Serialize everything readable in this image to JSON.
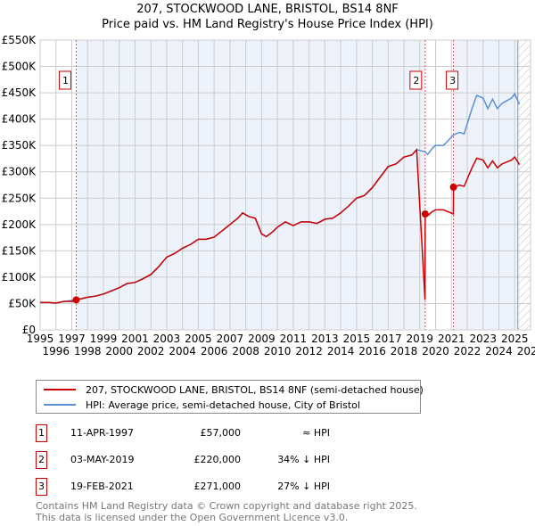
{
  "chart_data": {
    "type": "line",
    "title": "207, STOCKWOOD LANE, BRISTOL, BS14 8NF",
    "subtitle": "Price paid vs. HM Land Registry's House Price Index (HPI)",
    "xlim": [
      1995,
      2026
    ],
    "ylim": [
      0,
      550000
    ],
    "x_ticks": [
      "1995",
      "1996",
      "1997",
      "1998",
      "1999",
      "2000",
      "2001",
      "2002",
      "2003",
      "2004",
      "2005",
      "2006",
      "2007",
      "2008",
      "2009",
      "2010",
      "2011",
      "2012",
      "2013",
      "2014",
      "2015",
      "2016",
      "2017",
      "2018",
      "2019",
      "2020",
      "2021",
      "2022",
      "2023",
      "2024",
      "2025",
      "2026"
    ],
    "y_ticks": [
      "£0",
      "£50K",
      "£100K",
      "£150K",
      "£200K",
      "£250K",
      "£300K",
      "£350K",
      "£400K",
      "£450K",
      "£500K",
      "£550K"
    ],
    "grid": true,
    "hpi_series": [
      [
        1995,
        52
      ],
      [
        1995.5,
        52
      ],
      [
        1996,
        51
      ],
      [
        1996.5,
        54
      ],
      [
        1997.28,
        57
      ],
      [
        1997.6,
        59
      ],
      [
        1998,
        62
      ],
      [
        1998.5,
        64
      ],
      [
        1999,
        68
      ],
      [
        1999.5,
        74
      ],
      [
        2000,
        80
      ],
      [
        2000.5,
        88
      ],
      [
        2001,
        90
      ],
      [
        2001.5,
        97
      ],
      [
        2002,
        105
      ],
      [
        2002.5,
        120
      ],
      [
        2003,
        138
      ],
      [
        2003.5,
        145
      ],
      [
        2004,
        155
      ],
      [
        2004.5,
        162
      ],
      [
        2005,
        172
      ],
      [
        2005.5,
        172
      ],
      [
        2006,
        176
      ],
      [
        2006.5,
        188
      ],
      [
        2007,
        200
      ],
      [
        2007.5,
        212
      ],
      [
        2007.8,
        222
      ],
      [
        2008.2,
        215
      ],
      [
        2008.6,
        212
      ],
      [
        2009,
        182
      ],
      [
        2009.3,
        177
      ],
      [
        2009.7,
        186
      ],
      [
        2010,
        195
      ],
      [
        2010.5,
        205
      ],
      [
        2011,
        198
      ],
      [
        2011.5,
        205
      ],
      [
        2012,
        205
      ],
      [
        2012.5,
        202
      ],
      [
        2013,
        210
      ],
      [
        2013.5,
        212
      ],
      [
        2014,
        222
      ],
      [
        2014.5,
        235
      ],
      [
        2015,
        250
      ],
      [
        2015.5,
        255
      ],
      [
        2016,
        270
      ],
      [
        2016.5,
        290
      ],
      [
        2017,
        310
      ],
      [
        2017.5,
        315
      ],
      [
        2018,
        328
      ],
      [
        2018.5,
        332
      ],
      [
        2018.8,
        342
      ],
      [
        2019.34,
        338
      ],
      [
        2019.5,
        333
      ],
      [
        2019.8,
        345
      ],
      [
        2020,
        350
      ],
      [
        2020.5,
        350
      ],
      [
        2021.13,
        370
      ],
      [
        2021.5,
        375
      ],
      [
        2021.8,
        372
      ],
      [
        2022.3,
        420
      ],
      [
        2022.6,
        445
      ],
      [
        2023,
        440
      ],
      [
        2023.3,
        420
      ],
      [
        2023.6,
        438
      ],
      [
        2023.9,
        420
      ],
      [
        2024.2,
        430
      ],
      [
        2024.5,
        435
      ],
      [
        2024.8,
        440
      ],
      [
        2025.0,
        448
      ],
      [
        2025.3,
        428
      ]
    ],
    "hatch_from": 2025.2,
    "sales": [
      {
        "num": "1",
        "x": 1997.28,
        "value": 57000
      },
      {
        "num": "2",
        "x": 2019.34,
        "value": 220000
      },
      {
        "num": "3",
        "x": 2021.13,
        "value": 271000
      }
    ]
  },
  "colors": {
    "price": "#cc0000",
    "hpi": "#5b8fd4",
    "shade": "#eef3fb"
  },
  "legend": {
    "price_label": "207, STOCKWOOD LANE, BRISTOL, BS14 8NF (semi-detached house)",
    "hpi_label": "HPI: Average price, semi-detached house, City of Bristol"
  },
  "transactions": [
    {
      "num": "1",
      "date": "11-APR-1997",
      "price": "£57,000",
      "hpi": "≈ HPI"
    },
    {
      "num": "2",
      "date": "03-MAY-2019",
      "price": "£220,000",
      "hpi": "34% ↓ HPI"
    },
    {
      "num": "3",
      "date": "19-FEB-2021",
      "price": "£271,000",
      "hpi": "27% ↓ HPI"
    }
  ],
  "footer": {
    "line1": "Contains HM Land Registry data © Crown copyright and database right 2025.",
    "line2": "This data is licensed under the Open Government Licence v3.0."
  }
}
